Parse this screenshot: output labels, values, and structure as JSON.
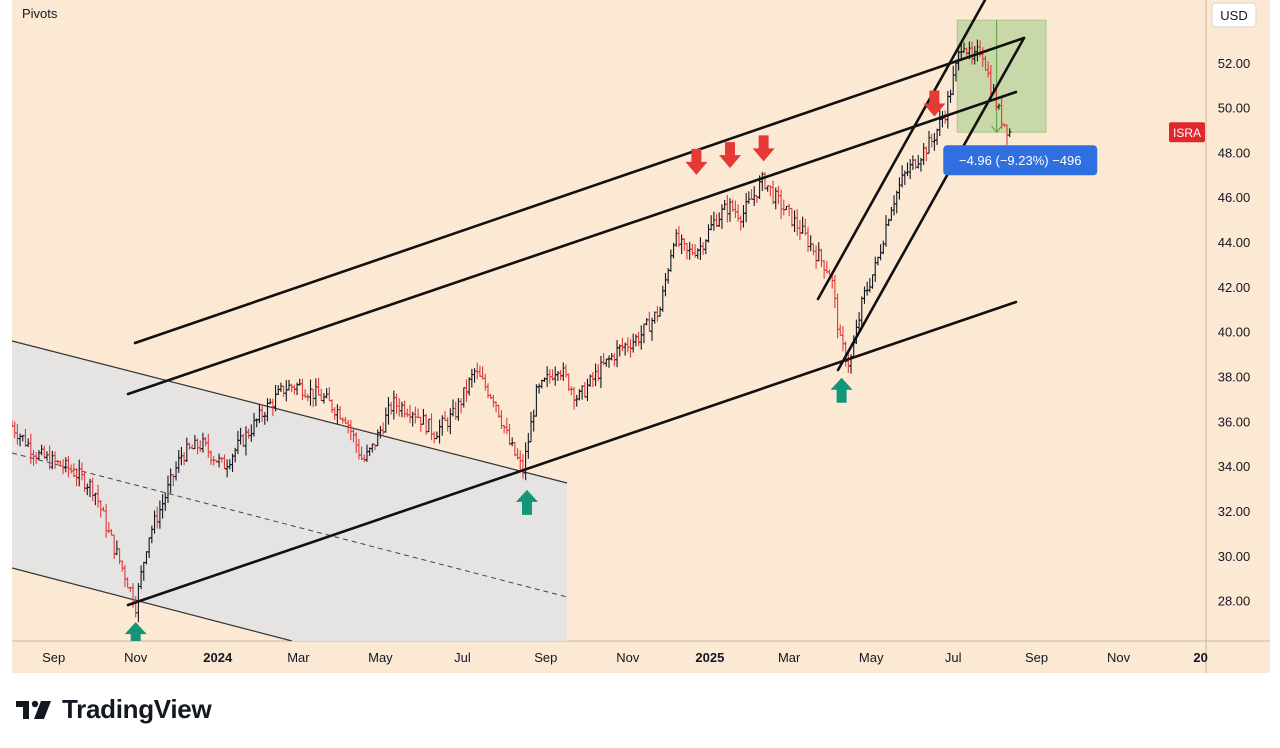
{
  "indicator_label": "Pivots",
  "currency": "USD",
  "ticker": "ISRA",
  "measure_label": "−4.96 (−9.23%) −496",
  "brand": "TradingView",
  "colors": {
    "background": "#fbe9d4",
    "axis_background": "#fbe9d4",
    "up_bar": "#131722",
    "down_bar": "#e03a3a",
    "trendline": "#111111",
    "down_arrow": "#e53935",
    "up_arrow": "#13957a",
    "ticker_badge": "#e0282c",
    "measure_badge": "#2f6fe0",
    "measure_box": "#b9d39a",
    "channel_fill": "#e3e3e3"
  },
  "chart_data": {
    "type": "line",
    "title": "",
    "ylim": [
      26.2,
      54.8
    ],
    "y_ticks": [
      "28.00",
      "30.00",
      "32.00",
      "34.00",
      "36.00",
      "38.00",
      "40.00",
      "42.00",
      "44.00",
      "46.00",
      "48.00",
      "50.00",
      "52.00"
    ],
    "x_ticks": [
      "Sep",
      "Nov",
      "2024",
      "Mar",
      "May",
      "Jul",
      "Sep",
      "Nov",
      "2025",
      "Mar",
      "May",
      "Jul",
      "Sep",
      "Nov",
      "20"
    ],
    "x_tick_dates": [
      "2023-09-01",
      "2023-11-01",
      "2024-01-01",
      "2024-03-01",
      "2024-05-01",
      "2024-07-01",
      "2024-09-01",
      "2024-11-01",
      "2025-01-01",
      "2025-03-01",
      "2025-05-01",
      "2025-07-01",
      "2025-09-01",
      "2025-11-01",
      "2026-01-01"
    ],
    "xlim": [
      "2023-08-01",
      "2026-01-05"
    ],
    "last_price": 48.9,
    "series": [
      {
        "x": [
          "2023-08-01",
          "2023-08-20",
          "2023-09-15",
          "2023-10-01",
          "2023-10-12",
          "2023-10-25",
          "2023-11-01",
          "2023-11-10",
          "2023-11-20",
          "2023-12-05",
          "2023-12-20",
          "2024-01-05",
          "2024-01-20",
          "2024-02-05",
          "2024-02-20",
          "2024-03-01",
          "2024-03-20",
          "2024-04-05",
          "2024-04-18",
          "2024-04-25",
          "2024-05-10",
          "2024-05-25",
          "2024-06-10",
          "2024-06-25",
          "2024-07-10",
          "2024-07-25",
          "2024-08-05",
          "2024-08-15",
          "2024-08-25",
          "2024-09-10",
          "2024-09-25",
          "2024-10-10",
          "2024-10-25",
          "2024-11-10",
          "2024-11-25",
          "2024-12-05",
          "2024-12-15",
          "2024-12-25",
          "2025-01-05",
          "2025-01-15",
          "2025-01-25",
          "2025-02-10",
          "2025-02-18",
          "2025-02-25",
          "2025-03-10",
          "2025-03-20",
          "2025-04-01",
          "2025-04-08",
          "2025-04-15",
          "2025-04-25",
          "2025-05-05",
          "2025-05-15",
          "2025-05-25",
          "2025-06-05",
          "2025-06-15",
          "2025-06-25",
          "2025-07-02",
          "2025-07-08",
          "2025-07-15",
          "2025-07-22",
          "2025-07-28",
          "2025-08-05",
          "2025-08-12"
        ],
        "y": [
          35.8,
          34.5,
          33.8,
          33.0,
          31.0,
          29.0,
          27.8,
          30.8,
          32.2,
          34.5,
          35.0,
          34.0,
          35.2,
          36.5,
          37.5,
          37.6,
          37.0,
          36.2,
          34.2,
          34.8,
          36.8,
          36.5,
          35.5,
          36.3,
          38.2,
          37.0,
          35.0,
          33.8,
          37.2,
          38.5,
          37.0,
          38.2,
          39.2,
          39.8,
          41.0,
          44.2,
          43.5,
          43.8,
          45.0,
          45.6,
          45.2,
          46.8,
          46.0,
          45.5,
          44.5,
          43.6,
          42.6,
          39.5,
          38.5,
          41.5,
          43.0,
          45.5,
          46.9,
          47.8,
          48.5,
          49.8,
          51.5,
          53.1,
          52.0,
          52.7,
          51.2,
          49.6,
          48.9
        ]
      }
    ],
    "annotations": {
      "down_arrows": [
        {
          "date": "2024-12-22",
          "value": 47.0
        },
        {
          "date": "2025-01-16",
          "value": 47.3
        },
        {
          "date": "2025-02-10",
          "value": 47.6
        },
        {
          "date": "2025-06-17",
          "value": 49.6
        }
      ],
      "up_arrows": [
        {
          "date": "2023-11-01",
          "value": 27.4
        },
        {
          "date": "2024-08-18",
          "value": 33.3
        },
        {
          "date": "2025-04-09",
          "value": 38.3
        }
      ],
      "measure": {
        "from_date": "2025-07-04",
        "to_date": "2025-09-08",
        "from_value": 53.9,
        "to_value": 48.9,
        "change": -4.96,
        "change_pct": -9.23
      }
    }
  }
}
